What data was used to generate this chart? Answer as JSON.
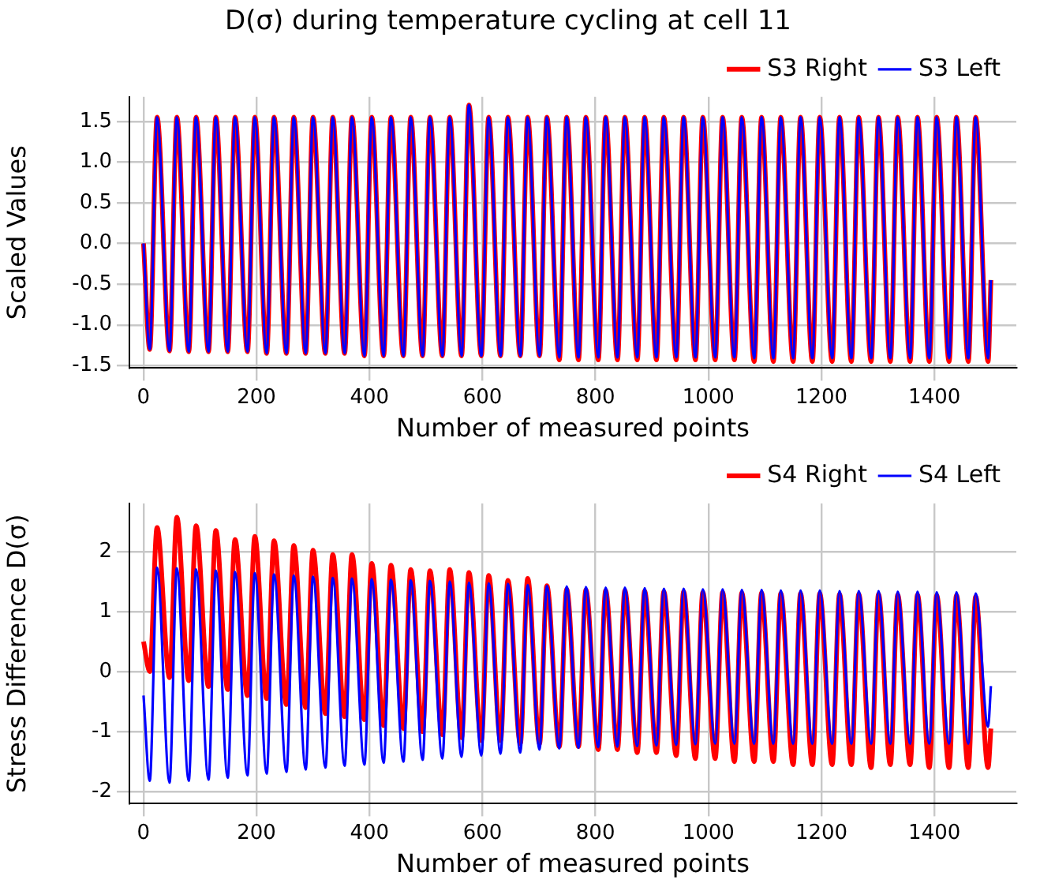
{
  "chart_data": [
    {
      "type": "line",
      "title": "D(σ) during temperature cycling at cell 11",
      "xlabel": "Number of measured points",
      "ylabel": "Scaled Values",
      "x": [
        0,
        11,
        24,
        46,
        59,
        80,
        93,
        115,
        128,
        149,
        162,
        184,
        197,
        218,
        231,
        253,
        266,
        287,
        300,
        322,
        335,
        356,
        369,
        391,
        404,
        425,
        438,
        460,
        473,
        494,
        507,
        529,
        542,
        563,
        576,
        598,
        611,
        632,
        645,
        667,
        680,
        701,
        714,
        736,
        749,
        770,
        783,
        805,
        818,
        839,
        852,
        874,
        887,
        908,
        921,
        943,
        956,
        977,
        990,
        1012,
        1025,
        1046,
        1059,
        1081,
        1094,
        1115,
        1128,
        1150,
        1163,
        1184,
        1197,
        1219,
        1232,
        1253,
        1266,
        1288,
        1301,
        1322,
        1335,
        1357,
        1370,
        1391,
        1404,
        1426,
        1439,
        1460,
        1473,
        1495,
        1500
      ],
      "series": [
        {
          "name": "S3 Right",
          "color": "#ff0000",
          "values": [
            0,
            -1.3,
            1.55,
            -1.32,
            1.55,
            -1.33,
            1.55,
            -1.33,
            1.55,
            -1.33,
            1.55,
            -1.33,
            1.55,
            -1.35,
            1.55,
            -1.35,
            1.55,
            -1.35,
            1.55,
            -1.35,
            1.55,
            -1.35,
            1.55,
            -1.38,
            1.55,
            -1.38,
            1.55,
            -1.38,
            1.55,
            -1.38,
            1.55,
            -1.38,
            1.55,
            -1.38,
            1.7,
            -1.38,
            1.55,
            -1.38,
            1.55,
            -1.38,
            1.55,
            -1.38,
            1.55,
            -1.43,
            1.55,
            -1.43,
            1.55,
            -1.43,
            1.55,
            -1.43,
            1.55,
            -1.43,
            1.55,
            -1.43,
            1.55,
            -1.43,
            1.55,
            -1.43,
            1.55,
            -1.43,
            1.55,
            -1.43,
            1.55,
            -1.45,
            1.55,
            -1.45,
            1.55,
            -1.45,
            1.55,
            -1.45,
            1.55,
            -1.45,
            1.55,
            -1.45,
            1.55,
            -1.45,
            1.55,
            -1.45,
            1.55,
            -1.45,
            1.55,
            -1.45,
            1.55,
            -1.45,
            1.55,
            -1.45,
            1.55,
            -1.45,
            -0.45
          ]
        },
        {
          "name": "S3 Left",
          "color": "#0000ff",
          "values": [
            0,
            -1.3,
            1.55,
            -1.32,
            1.55,
            -1.33,
            1.55,
            -1.33,
            1.55,
            -1.33,
            1.55,
            -1.33,
            1.55,
            -1.35,
            1.55,
            -1.35,
            1.55,
            -1.35,
            1.55,
            -1.35,
            1.55,
            -1.35,
            1.55,
            -1.38,
            1.55,
            -1.38,
            1.55,
            -1.38,
            1.55,
            -1.38,
            1.55,
            -1.38,
            1.55,
            -1.38,
            1.7,
            -1.38,
            1.55,
            -1.38,
            1.55,
            -1.38,
            1.55,
            -1.38,
            1.55,
            -1.4,
            1.55,
            -1.4,
            1.55,
            -1.4,
            1.55,
            -1.4,
            1.55,
            -1.4,
            1.55,
            -1.4,
            1.55,
            -1.4,
            1.55,
            -1.4,
            1.55,
            -1.4,
            1.55,
            -1.4,
            1.55,
            -1.41,
            1.55,
            -1.41,
            1.55,
            -1.41,
            1.55,
            -1.41,
            1.55,
            -1.41,
            1.55,
            -1.41,
            1.55,
            -1.41,
            1.55,
            -1.41,
            1.55,
            -1.41,
            1.55,
            -1.41,
            1.55,
            -1.41,
            1.55,
            -1.41,
            1.55,
            -1.41,
            -0.45
          ]
        }
      ],
      "xlim": [
        -25,
        1545
      ],
      "xticks": [
        0,
        200,
        400,
        600,
        800,
        1000,
        1200,
        1400
      ],
      "ylim": [
        -1.53,
        1.8
      ],
      "yticks": [
        -1.5,
        {
          "value": -1,
          "label": "-1.0"
        },
        -0.5,
        {
          "value": 0,
          "label": "0.0"
        },
        0.5,
        {
          "value": 1,
          "label": "1.0"
        },
        1.5
      ],
      "grid": true,
      "legend": "top right",
      "marker": "none",
      "line_style": "solid"
    },
    {
      "type": "line",
      "xlabel": "Number of measured points",
      "ylabel": "Stress Difference D(σ)",
      "x": [
        0,
        11,
        24,
        46,
        59,
        80,
        93,
        115,
        128,
        149,
        162,
        184,
        197,
        218,
        231,
        253,
        266,
        287,
        300,
        322,
        335,
        356,
        369,
        391,
        404,
        425,
        438,
        460,
        473,
        494,
        507,
        529,
        542,
        563,
        576,
        598,
        611,
        632,
        645,
        667,
        680,
        701,
        714,
        736,
        749,
        770,
        783,
        805,
        818,
        839,
        852,
        874,
        887,
        908,
        921,
        943,
        956,
        977,
        990,
        1012,
        1025,
        1046,
        1059,
        1081,
        1094,
        1115,
        1128,
        1150,
        1163,
        1184,
        1197,
        1219,
        1232,
        1253,
        1266,
        1288,
        1301,
        1322,
        1335,
        1357,
        1370,
        1391,
        1404,
        1426,
        1439,
        1460,
        1473,
        1495,
        1500
      ],
      "series": [
        {
          "name": "S4 Right",
          "color": "#ff0000",
          "values": [
            0.5,
            0,
            2.4,
            -0.1,
            2.57,
            -0.15,
            2.43,
            -0.25,
            2.35,
            -0.3,
            2.2,
            -0.4,
            2.25,
            -0.45,
            2.18,
            -0.55,
            2.1,
            -0.6,
            2.02,
            -0.7,
            1.95,
            -0.75,
            1.95,
            -0.8,
            1.8,
            -0.9,
            1.77,
            -0.95,
            1.7,
            -1.0,
            1.68,
            -1.05,
            1.7,
            -1.1,
            1.65,
            -1.15,
            1.6,
            -1.15,
            1.52,
            -1.2,
            1.55,
            -1.2,
            1.43,
            -1.25,
            1.37,
            -1.25,
            1.36,
            -1.3,
            1.35,
            -1.3,
            1.35,
            -1.35,
            1.34,
            -1.35,
            1.33,
            -1.4,
            1.33,
            -1.45,
            1.32,
            -1.45,
            1.32,
            -1.5,
            1.31,
            -1.5,
            1.31,
            -1.5,
            1.3,
            -1.55,
            1.3,
            -1.55,
            1.3,
            -1.55,
            1.29,
            -1.55,
            1.29,
            -1.6,
            1.29,
            -1.55,
            1.28,
            -1.55,
            1.28,
            -1.6,
            1.27,
            -1.6,
            1.27,
            -1.6,
            1.25,
            -1.6,
            -0.95
          ]
        },
        {
          "name": "S4 Left",
          "color": "#0000ff",
          "values": [
            -0.4,
            -1.82,
            1.73,
            -1.85,
            1.72,
            -1.82,
            1.7,
            -1.8,
            1.68,
            -1.77,
            1.66,
            -1.73,
            1.64,
            -1.7,
            1.62,
            -1.67,
            1.6,
            -1.63,
            1.58,
            -1.6,
            1.56,
            -1.57,
            1.55,
            -1.55,
            1.54,
            -1.52,
            1.53,
            -1.5,
            1.52,
            -1.47,
            1.51,
            -1.45,
            1.5,
            -1.42,
            1.48,
            -1.4,
            1.47,
            -1.37,
            1.46,
            -1.35,
            1.44,
            -1.3,
            1.43,
            -1.28,
            1.42,
            -1.27,
            1.41,
            -1.26,
            1.4,
            -1.25,
            1.4,
            -1.24,
            1.39,
            -1.23,
            1.38,
            -1.22,
            1.38,
            -1.21,
            1.37,
            -1.2,
            1.37,
            -1.2,
            1.36,
            -1.2,
            1.36,
            -1.2,
            1.35,
            -1.2,
            1.35,
            -1.2,
            1.35,
            -1.2,
            1.34,
            -1.2,
            1.34,
            -1.2,
            1.34,
            -1.2,
            1.33,
            -1.2,
            1.33,
            -1.2,
            1.32,
            -1.2,
            1.32,
            -1.2,
            1.3,
            -0.92,
            -0.24
          ]
        }
      ],
      "xlim": [
        -25,
        1545
      ],
      "xticks": [
        0,
        200,
        400,
        600,
        800,
        1000,
        1200,
        1400
      ],
      "ylim": [
        -2.2,
        2.8
      ],
      "yticks": [
        -2,
        -1,
        0,
        1,
        2
      ],
      "grid": true,
      "legend": "top right",
      "marker": "none",
      "line_style": "solid"
    }
  ]
}
